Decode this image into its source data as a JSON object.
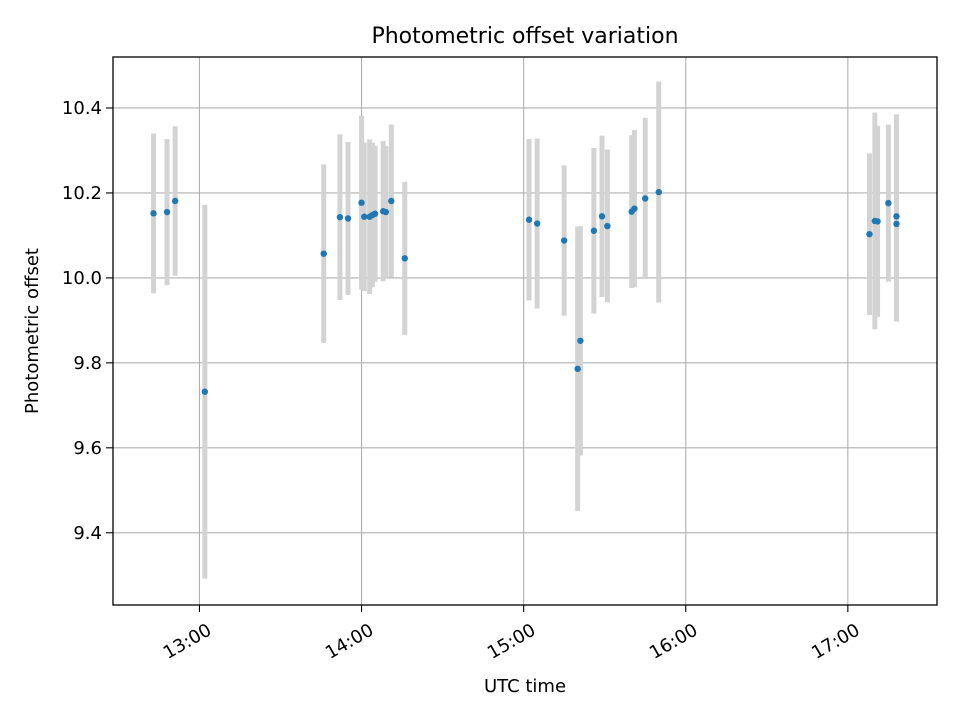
{
  "chart_data": {
    "type": "scatter",
    "title": "Photometric offset variation",
    "xlabel": "UTC time",
    "ylabel": "Photometric offset",
    "xlim": [
      "12:28",
      "17:33"
    ],
    "ylim": [
      9.23,
      10.52
    ],
    "grid": true,
    "x_ticks": [
      "13:00",
      "14:00",
      "15:00",
      "16:00",
      "17:00"
    ],
    "y_ticks": [
      9.4,
      9.6,
      9.8,
      10.0,
      10.2,
      10.4
    ],
    "y_tick_labels": [
      "9.4",
      "9.6",
      "9.8",
      "10.0",
      "10.2",
      "10.4"
    ],
    "colors": {
      "point": "#1f77b4",
      "errorbar": "#d3d3d3",
      "grid": "#b0b0b0"
    },
    "series": [
      {
        "points": [
          {
            "x": "12:43",
            "y": 10.152,
            "err": 0.188
          },
          {
            "x": "12:48",
            "y": 10.155,
            "err": 0.172
          },
          {
            "x": "12:51",
            "y": 10.181,
            "err": 0.176
          },
          {
            "x": "13:02",
            "y": 9.732,
            "err": 0.44
          },
          {
            "x": "13:46",
            "y": 10.057,
            "err": 0.21
          },
          {
            "x": "13:52",
            "y": 10.143,
            "err": 0.195
          },
          {
            "x": "13:55",
            "y": 10.14,
            "err": 0.18
          },
          {
            "x": "14:00",
            "y": 10.177,
            "err": 0.205
          },
          {
            "x": "14:01",
            "y": 10.144,
            "err": 0.175
          },
          {
            "x": "14:03",
            "y": 10.144,
            "err": 0.182
          },
          {
            "x": "14:04",
            "y": 10.148,
            "err": 0.17
          },
          {
            "x": "14:05",
            "y": 10.151,
            "err": 0.16
          },
          {
            "x": "14:08",
            "y": 10.157,
            "err": 0.165
          },
          {
            "x": "14:09",
            "y": 10.155,
            "err": 0.155
          },
          {
            "x": "14:11",
            "y": 10.181,
            "err": 0.18
          },
          {
            "x": "14:16",
            "y": 10.046,
            "err": 0.18
          },
          {
            "x": "15:02",
            "y": 10.137,
            "err": 0.19
          },
          {
            "x": "15:05",
            "y": 10.128,
            "err": 0.2
          },
          {
            "x": "15:15",
            "y": 10.088,
            "err": 0.177
          },
          {
            "x": "15:20",
            "y": 9.786,
            "err": 0.335
          },
          {
            "x": "15:21",
            "y": 9.852,
            "err": 0.27
          },
          {
            "x": "15:26",
            "y": 10.111,
            "err": 0.195
          },
          {
            "x": "15:29",
            "y": 10.145,
            "err": 0.19
          },
          {
            "x": "15:31",
            "y": 10.122,
            "err": 0.18
          },
          {
            "x": "15:40",
            "y": 10.156,
            "err": 0.18
          },
          {
            "x": "15:41",
            "y": 10.163,
            "err": 0.185
          },
          {
            "x": "15:45",
            "y": 10.187,
            "err": 0.19
          },
          {
            "x": "15:50",
            "y": 10.202,
            "err": 0.26
          },
          {
            "x": "17:08",
            "y": 10.103,
            "err": 0.19
          },
          {
            "x": "17:10",
            "y": 10.134,
            "err": 0.255
          },
          {
            "x": "17:11",
            "y": 10.133,
            "err": 0.225
          },
          {
            "x": "17:15",
            "y": 10.176,
            "err": 0.185
          },
          {
            "x": "17:18",
            "y": 10.127,
            "err": 0.23
          },
          {
            "x": "17:18",
            "y": 10.145,
            "err": 0.24
          }
        ]
      }
    ]
  }
}
